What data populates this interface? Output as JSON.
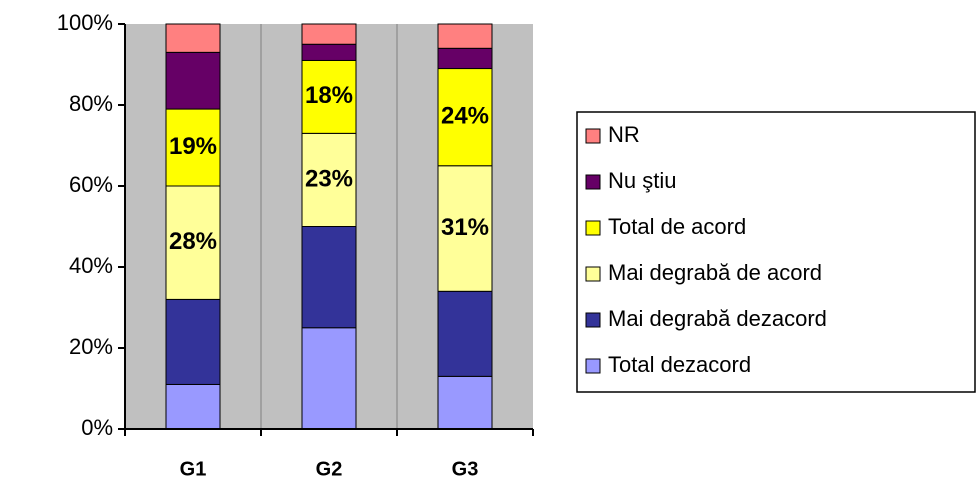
{
  "chart_data": {
    "type": "stacked_bar",
    "categories": [
      "G1",
      "G2",
      "G3"
    ],
    "series": [
      {
        "name": "Total dezacord",
        "color": "#9999ff",
        "values": [
          11,
          25,
          13
        ]
      },
      {
        "name": "Mai degrabă dezacord",
        "color": "#333399",
        "values": [
          21,
          25,
          21
        ]
      },
      {
        "name": "Mai degrabă de acord",
        "color": "#ffff99",
        "values": [
          28,
          23,
          31
        ],
        "value_labels": [
          "28%",
          "23%",
          "31%"
        ]
      },
      {
        "name": "Total de acord",
        "color": "#ffff00",
        "values": [
          19,
          18,
          24
        ],
        "value_labels": [
          "19%",
          "18%",
          "24%"
        ]
      },
      {
        "name": "Nu ştiu",
        "color": "#660066",
        "values": [
          14,
          4,
          5
        ]
      },
      {
        "name": "NR",
        "color": "#ff8080",
        "values": [
          7,
          5,
          6
        ]
      }
    ],
    "ylim": [
      0,
      100
    ],
    "yticks": [
      {
        "value": 0,
        "label": "0%"
      },
      {
        "value": 20,
        "label": "20%"
      },
      {
        "value": 40,
        "label": "40%"
      },
      {
        "value": 60,
        "label": "60%"
      },
      {
        "value": 80,
        "label": "80%"
      },
      {
        "value": 100,
        "label": "100%"
      }
    ],
    "legend": "right"
  }
}
